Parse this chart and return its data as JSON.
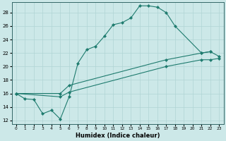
{
  "xlabel": "Humidex (Indice chaleur)",
  "xlim": [
    -0.5,
    23.5
  ],
  "ylim": [
    11.5,
    29.5
  ],
  "xticks": [
    0,
    1,
    2,
    3,
    4,
    5,
    6,
    7,
    8,
    9,
    10,
    11,
    12,
    13,
    14,
    15,
    16,
    17,
    18,
    19,
    20,
    21,
    22,
    23
  ],
  "yticks": [
    12,
    14,
    16,
    18,
    20,
    22,
    24,
    26,
    28
  ],
  "bg_color": "#cce8e8",
  "grid_color": "#b0d4d4",
  "line_color": "#1e7b6e",
  "curve1_x": [
    0,
    1,
    2,
    3,
    4,
    5,
    6,
    7,
    8,
    9,
    10,
    11,
    12,
    13,
    14,
    15,
    16,
    17,
    18,
    21,
    22
  ],
  "curve1_y": [
    16,
    15.2,
    15.1,
    13,
    13.5,
    12.2,
    15.5,
    20.5,
    22.5,
    23.0,
    24.5,
    26.2,
    26.5,
    27.2,
    29.0,
    29.0,
    28.8,
    28.0,
    26.0,
    22.0,
    22.2
  ],
  "curve2_x": [
    0,
    5,
    6,
    17,
    21,
    22,
    23
  ],
  "curve2_y": [
    16,
    16.0,
    17.2,
    21.0,
    22.0,
    22.2,
    21.5
  ],
  "curve3_x": [
    0,
    5,
    6,
    17,
    21,
    22,
    23
  ],
  "curve3_y": [
    16,
    15.5,
    16.2,
    20.0,
    21.0,
    21.0,
    21.2
  ]
}
